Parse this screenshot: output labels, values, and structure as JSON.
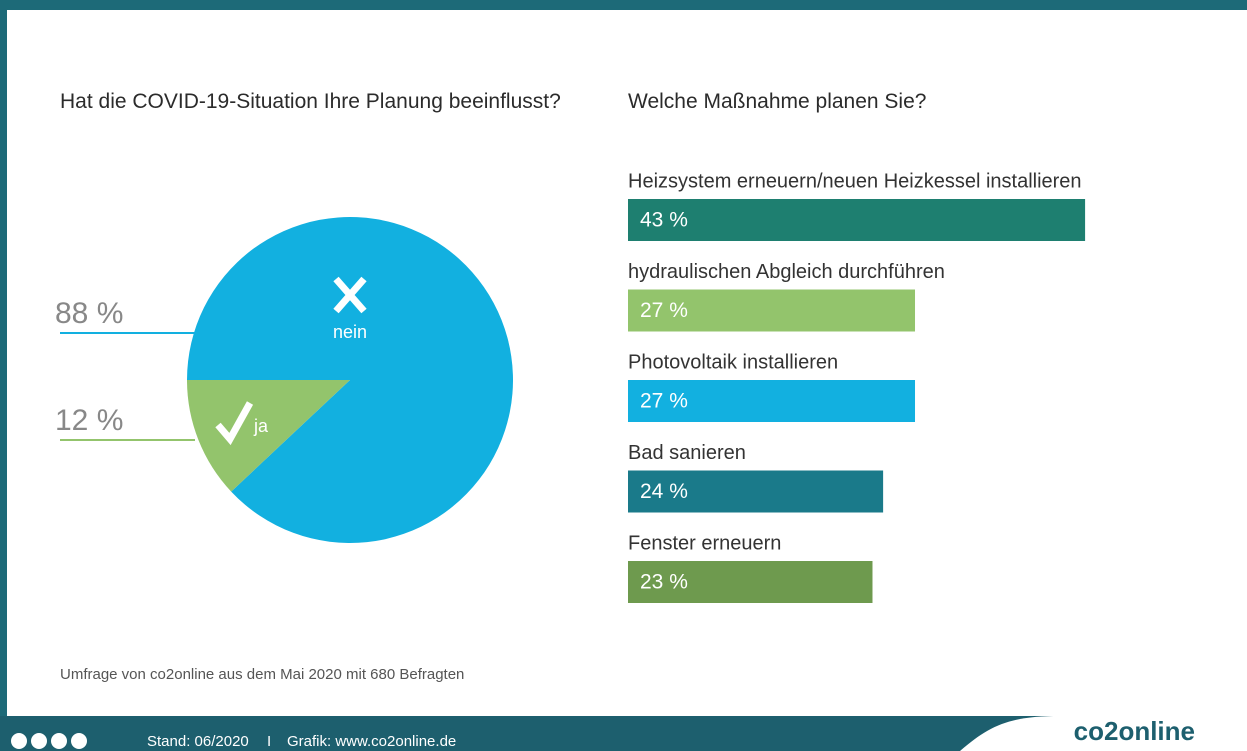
{
  "chart_data": [
    {
      "type": "pie",
      "title": "Hat die COVID-19-Situation Ihre Planung beeinflusst?",
      "categories": [
        "nein",
        "ja"
      ],
      "values": [
        88,
        12
      ],
      "value_labels": [
        "88 %",
        "12 %"
      ],
      "colors": [
        "#12b0e0",
        "#93c46c"
      ]
    },
    {
      "type": "bar",
      "title": "Welche Maßnahme planen Sie?",
      "categories": [
        "Heizsystem erneuern/neuen Heizkessel installieren",
        "hydraulischen Abgleich durchführen",
        "Photovoltaik installieren",
        "Bad sanieren",
        "Fenster erneuern"
      ],
      "values": [
        43,
        27,
        27,
        24,
        23
      ],
      "value_labels": [
        "43 %",
        "27 %",
        "27 %",
        "24 %",
        "23 %"
      ],
      "colors": [
        "#1e7f70",
        "#93c46c",
        "#12b0e0",
        "#1a7a8a",
        "#6e9a4e"
      ]
    }
  ],
  "footer": {
    "note": "Umfrage von co2online aus dem Mai 2020 mit 680 Befragten",
    "stand": "Stand: 06/2020",
    "separator": "I",
    "credit": "Grafik: www.co2online.de",
    "brand": "co2online"
  }
}
